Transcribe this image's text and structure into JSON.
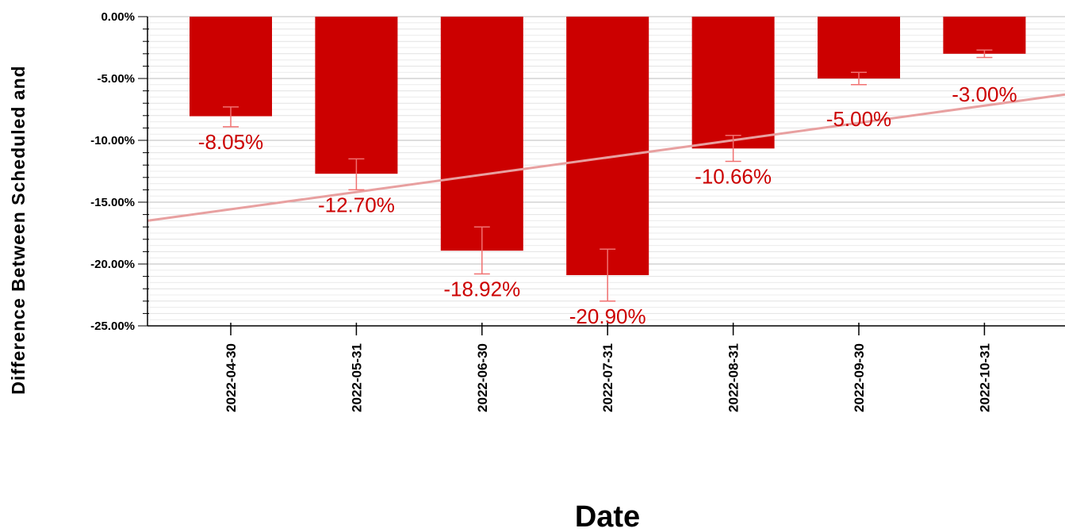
{
  "chart_data": {
    "type": "bar",
    "title": "",
    "xlabel": "Date",
    "ylabel": "Difference Between Scheduled and",
    "categories": [
      "2022-04-30",
      "2022-05-31",
      "2022-06-30",
      "2022-07-31",
      "2022-08-31",
      "2022-09-30",
      "2022-10-31"
    ],
    "series": [
      {
        "values": [
          -8.05,
          -12.7,
          -18.92,
          -20.9,
          -10.66,
          -5.0,
          -3.0
        ],
        "labels": [
          "-8.05%",
          "-12.70%",
          "-18.92%",
          "-20.90%",
          "-10.66%",
          "-5.00%",
          "-3.00%"
        ],
        "error_low": [
          -8.9,
          -14.0,
          -20.8,
          -23.0,
          -11.7,
          -5.5,
          -3.3
        ],
        "error_high": [
          -7.3,
          -11.5,
          -17.0,
          -18.8,
          -9.6,
          -4.5,
          -2.7
        ],
        "color": "#cc0000"
      }
    ],
    "trendline": {
      "start": -16.5,
      "end": -6.3,
      "color": "#e8a0a0"
    },
    "ylim": [
      -25,
      0
    ],
    "yticks": [
      0,
      -5,
      -10,
      -15,
      -20,
      -25
    ],
    "ytick_labels": [
      "0.00%",
      "-5.00%",
      "-10.00%",
      "-15.00%",
      "-20.00%",
      "-25.00%"
    ],
    "grid": true,
    "legend": "none"
  }
}
